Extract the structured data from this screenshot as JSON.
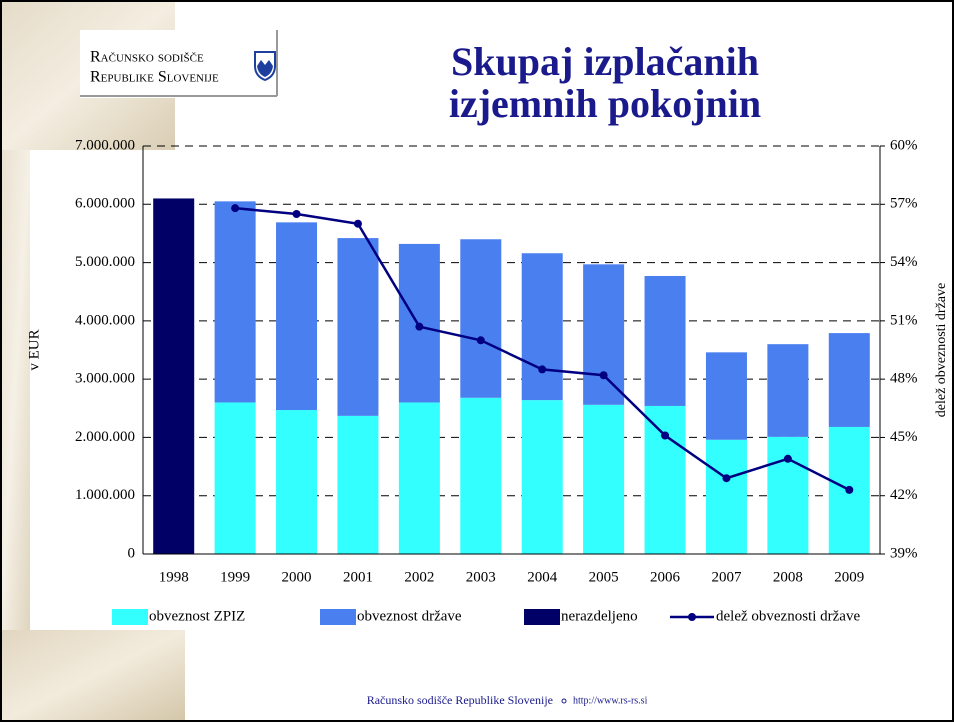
{
  "logo": {
    "line1": "Računsko sodišče",
    "line2": "Republike Slovenije"
  },
  "footer": {
    "org": "Računsko sodišče Republike Slovenije",
    "url": "http://www.rs-rs.si"
  },
  "chart_data": {
    "type": "bar",
    "stacked": true,
    "title": [
      "Skupaj izplačanih",
      "izjemnih pokojnin"
    ],
    "y_label": "v EUR",
    "y2_label": "delež obveznosti države",
    "categories": [
      "1998",
      "1999",
      "2000",
      "2001",
      "2002",
      "2003",
      "2004",
      "2005",
      "2006",
      "2007",
      "2008",
      "2009"
    ],
    "series": [
      {
        "name": "obveznost ZPIZ",
        "color": "#33ffff",
        "values": [
          null,
          2600000,
          2470000,
          2370000,
          2600000,
          2680000,
          2640000,
          2560000,
          2540000,
          1960000,
          2010000,
          2180000
        ]
      },
      {
        "name": "obveznost države",
        "color": "#4a7ff0",
        "values": [
          null,
          3450000,
          3220000,
          3050000,
          2720000,
          2720000,
          2520000,
          2410000,
          2230000,
          1500000,
          1590000,
          1610000
        ]
      },
      {
        "name": "nerazdeljeno",
        "color": "#000066",
        "values": [
          6100000,
          null,
          null,
          null,
          null,
          null,
          null,
          null,
          null,
          null,
          null,
          null
        ]
      },
      {
        "name": "delež obveznosti države",
        "color": "#000080",
        "type": "line",
        "axis": "y2",
        "values": [
          null,
          56.8,
          56.5,
          56.0,
          50.7,
          50.0,
          48.5,
          48.2,
          45.1,
          42.9,
          43.9,
          42.3
        ]
      }
    ],
    "ylim": [
      0,
      7000000
    ],
    "yticks": [
      0,
      {
        "value": 1000000,
        "label": "1.000.000"
      },
      {
        "value": 2000000,
        "label": "2.000.000"
      },
      {
        "value": 3000000,
        "label": "3.000.000"
      },
      {
        "value": 4000000,
        "label": "4.000.000"
      },
      {
        "value": 5000000,
        "label": "5.000.000"
      },
      {
        "value": 6000000,
        "label": "6.000.000"
      },
      {
        "value": 7000000,
        "label": "7.000.000"
      }
    ],
    "y2lim": [
      39,
      60
    ],
    "y2ticks": [
      {
        "value": 39,
        "label": "39%"
      },
      {
        "value": 42,
        "label": "42%"
      },
      {
        "value": 45,
        "label": "45%"
      },
      {
        "value": 48,
        "label": "48%"
      },
      {
        "value": 51,
        "label": "51%"
      },
      {
        "value": 54,
        "label": "54%"
      },
      {
        "value": 57,
        "label": "57%"
      },
      {
        "value": 60,
        "label": "60%"
      }
    ],
    "grid": true,
    "legend": "bottom"
  }
}
